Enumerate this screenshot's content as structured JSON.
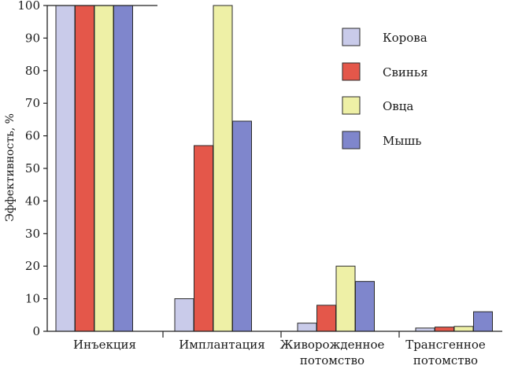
{
  "chart_data": {
    "type": "bar",
    "ylabel": "Эффективность, %",
    "xlabel": "",
    "ylim": [
      0,
      100
    ],
    "yticks": [
      0,
      10,
      20,
      30,
      40,
      50,
      60,
      70,
      80,
      90,
      100
    ],
    "categories": [
      [
        "Инъекция"
      ],
      [
        "Имплантация"
      ],
      [
        "Живорожденное",
        "потомство"
      ],
      [
        "Трансгенное",
        "потомство"
      ]
    ],
    "series": [
      {
        "name": "Корова",
        "color": "#c9cbea",
        "values": [
          100,
          10,
          2.5,
          1
        ]
      },
      {
        "name": "Свинья",
        "color": "#e4574a",
        "values": [
          100,
          57,
          8,
          1.3
        ]
      },
      {
        "name": "Овца",
        "color": "#eef0a6",
        "values": [
          100,
          100,
          20,
          1.5
        ]
      },
      {
        "name": "Мышь",
        "color": "#7f86cc",
        "values": [
          100,
          64.5,
          15.3,
          6
        ]
      }
    ],
    "legend_position": "top-right",
    "grid": false
  }
}
